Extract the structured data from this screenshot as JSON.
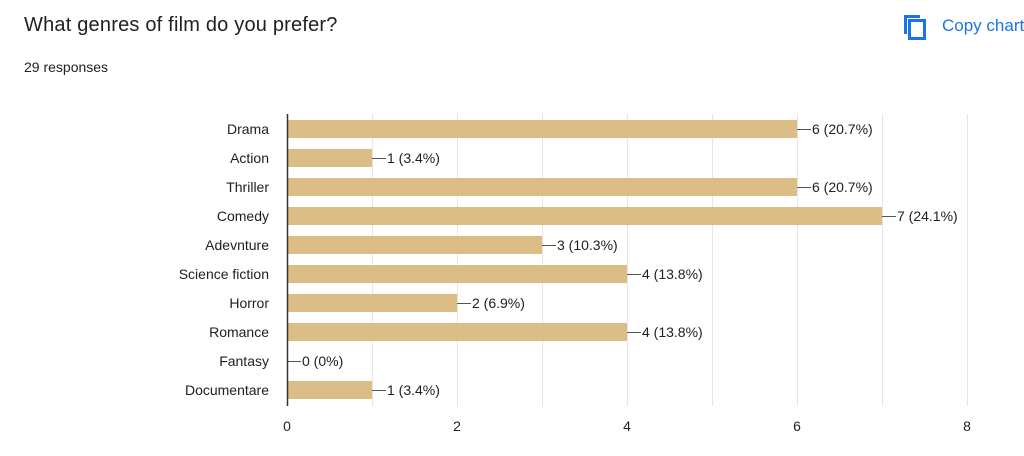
{
  "header": {
    "question": "What genres of film do you prefer?",
    "responses": "29 responses",
    "copy_label": "Copy chart"
  },
  "colors": {
    "bar": "#dbbd85",
    "grid": "#e6e6e6",
    "axis": "#333333",
    "text": "#202124",
    "link": "#1a73e8"
  },
  "chart_data": {
    "type": "bar",
    "orientation": "horizontal",
    "categories": [
      "Drama",
      "Action",
      "Thriller",
      "Comedy",
      "Adevnture",
      "Science fiction",
      "Horror",
      "Romance",
      "Fantasy",
      "Documentare"
    ],
    "values": [
      6,
      1,
      6,
      7,
      3,
      4,
      2,
      4,
      0,
      1
    ],
    "value_labels": [
      "6 (20.7%)",
      "1 (3.4%)",
      "6 (20.7%)",
      "7 (24.1%)",
      "3 (10.3%)",
      "4 (13.8%)",
      "2 (6.9%)",
      "4 (13.8%)",
      "0 (0%)",
      "1 (3.4%)"
    ],
    "xlim": [
      0,
      8
    ],
    "xticks": [
      0,
      2,
      4,
      6,
      8
    ],
    "grid": true
  }
}
